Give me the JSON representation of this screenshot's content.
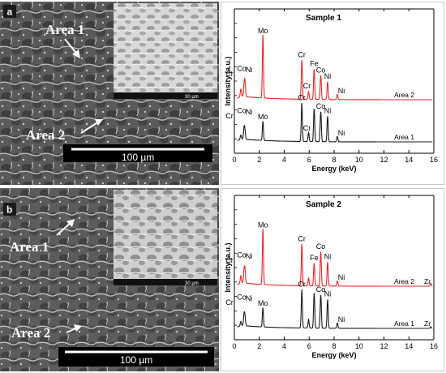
{
  "panels": [
    {
      "letter": "a",
      "area_labels": [
        "Area 1",
        "Area 2"
      ],
      "scale_bar": "100 µm",
      "inset_scale": "30 µm"
    },
    {
      "letter": "b",
      "area_labels": [
        "Area 1",
        "Area 2"
      ],
      "scale_bar": "100 µm",
      "inset_scale": "30 µm"
    }
  ],
  "colors": {
    "red_series": "#e8262a",
    "black_series": "#1a1a1a",
    "micro_dark": "#4a4a4a",
    "micro_light": "#c9c9c9"
  },
  "chart_data": [
    {
      "type": "line",
      "title": "Sample 1",
      "xlabel": "Energy (keV)",
      "ylabel": "Intensity (a.u.)",
      "xlim": [
        0,
        16
      ],
      "xticks": [
        0,
        2,
        4,
        6,
        8,
        10,
        12,
        14,
        16
      ],
      "series": [
        {
          "name": "Area 2",
          "color": "red",
          "peaks": [
            {
              "energy": 0.52,
              "intensity": 0.12,
              "label": "Cr"
            },
            {
              "energy": 0.78,
              "intensity": 0.16,
              "label": "Co"
            },
            {
              "energy": 0.85,
              "intensity": 0.22,
              "label": "Ni"
            },
            {
              "energy": 2.29,
              "intensity": 1.0,
              "label": "Mo"
            },
            {
              "energy": 5.41,
              "intensity": 0.62,
              "label": "Cr"
            },
            {
              "energy": 5.95,
              "intensity": 0.12,
              "label": "Cr"
            },
            {
              "energy": 6.4,
              "intensity": 0.48,
              "label": "Fe"
            },
            {
              "energy": 6.93,
              "intensity": 0.38,
              "label": "Co"
            },
            {
              "energy": 7.48,
              "intensity": 0.28,
              "label": "Ni"
            },
            {
              "energy": 8.26,
              "intensity": 0.08,
              "label": "Ni"
            }
          ]
        },
        {
          "name": "Area 1",
          "color": "black",
          "peaks": [
            {
              "energy": 0.52,
              "intensity": 0.08,
              "label": "Cr"
            },
            {
              "energy": 0.78,
              "intensity": 0.2,
              "label": "Co"
            },
            {
              "energy": 0.85,
              "intensity": 0.14,
              "label": "Ni"
            },
            {
              "energy": 2.29,
              "intensity": 0.36,
              "label": "Mo"
            },
            {
              "energy": 5.41,
              "intensity": 0.72,
              "label": "Cr"
            },
            {
              "energy": 5.95,
              "intensity": 0.17,
              "label": "Cr"
            },
            {
              "energy": 6.4,
              "intensity": 0.62,
              "label": ""
            },
            {
              "energy": 6.93,
              "intensity": 0.56,
              "label": "Co"
            },
            {
              "energy": 7.48,
              "intensity": 0.48,
              "label": "Ni"
            },
            {
              "energy": 8.26,
              "intensity": 0.1,
              "label": "Ni"
            }
          ]
        }
      ]
    },
    {
      "type": "line",
      "title": "Sample 2",
      "xlabel": "Energy (keV)",
      "ylabel": "Intensity (a.u.)",
      "xlim": [
        0,
        16
      ],
      "xticks": [
        0,
        2,
        4,
        6,
        8,
        10,
        12,
        14,
        16
      ],
      "series": [
        {
          "name": "Area 2",
          "color": "red",
          "extra_label": "Zr",
          "peaks": [
            {
              "energy": 0.52,
              "intensity": 0.12,
              "label": "Cr"
            },
            {
              "energy": 0.78,
              "intensity": 0.17,
              "label": "Co"
            },
            {
              "energy": 0.85,
              "intensity": 0.2,
              "label": "Ni"
            },
            {
              "energy": 2.29,
              "intensity": 0.88,
              "label": "Mo"
            },
            {
              "energy": 5.41,
              "intensity": 0.66,
              "label": "Cr"
            },
            {
              "energy": 5.95,
              "intensity": 0.12,
              "label": ""
            },
            {
              "energy": 6.4,
              "intensity": 0.36,
              "label": "Fe"
            },
            {
              "energy": 6.93,
              "intensity": 0.54,
              "label": "Co"
            },
            {
              "energy": 7.48,
              "intensity": 0.38,
              "label": "Ni"
            },
            {
              "energy": 8.26,
              "intensity": 0.08,
              "label": "Ni"
            },
            {
              "energy": 15.75,
              "intensity": 0.05,
              "label": ""
            }
          ]
        },
        {
          "name": "Area 1",
          "color": "black",
          "extra_label": "Zr",
          "peaks": [
            {
              "energy": 0.52,
              "intensity": 0.08,
              "label": "Cr"
            },
            {
              "energy": 0.78,
              "intensity": 0.2,
              "label": "Co"
            },
            {
              "energy": 0.85,
              "intensity": 0.15,
              "label": "Ni"
            },
            {
              "energy": 2.29,
              "intensity": 0.36,
              "label": "Mo"
            },
            {
              "energy": 5.41,
              "intensity": 0.72,
              "label": "Cr"
            },
            {
              "energy": 5.95,
              "intensity": 0.16,
              "label": ""
            },
            {
              "energy": 6.4,
              "intensity": 0.66,
              "label": ""
            },
            {
              "energy": 6.93,
              "intensity": 0.62,
              "label": "Co"
            },
            {
              "energy": 7.48,
              "intensity": 0.54,
              "label": "Ni"
            },
            {
              "energy": 8.26,
              "intensity": 0.1,
              "label": "Ni"
            },
            {
              "energy": 15.75,
              "intensity": 0.03,
              "label": ""
            }
          ]
        }
      ]
    }
  ]
}
